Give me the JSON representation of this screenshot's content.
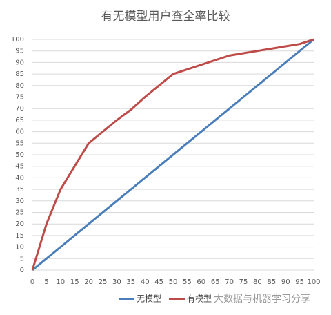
{
  "chart_data": {
    "type": "line",
    "title": "有无模型用户查全率比较",
    "x": [
      0,
      5,
      10,
      15,
      20,
      25,
      30,
      35,
      40,
      45,
      50,
      55,
      60,
      65,
      70,
      75,
      80,
      85,
      90,
      95,
      100
    ],
    "series": [
      {
        "name": "无模型",
        "color": "#4a7ebb",
        "values": [
          0,
          5,
          10,
          15,
          20,
          25,
          30,
          35,
          40,
          45,
          50,
          55,
          60,
          65,
          70,
          75,
          80,
          85,
          90,
          95,
          100
        ]
      },
      {
        "name": "有模型",
        "color": "#be4b48",
        "values": [
          0,
          20,
          35,
          45,
          55,
          60,
          65,
          69.5,
          75,
          80,
          85,
          87,
          89,
          91,
          93,
          94,
          95,
          96,
          97,
          98,
          100
        ]
      }
    ],
    "xlim": [
      0,
      100
    ],
    "xticks": [
      0,
      5,
      10,
      15,
      20,
      25,
      30,
      35,
      40,
      45,
      50,
      55,
      60,
      65,
      70,
      75,
      80,
      85,
      90,
      95,
      100
    ],
    "ylim": [
      0,
      100
    ],
    "yticks": [
      0,
      5,
      10,
      15,
      20,
      25,
      30,
      35,
      40,
      45,
      50,
      55,
      60,
      65,
      70,
      75,
      80,
      85,
      90,
      95,
      100
    ],
    "grid": true,
    "legend": "bottom",
    "watermark": "大数据与机器学习分享"
  }
}
